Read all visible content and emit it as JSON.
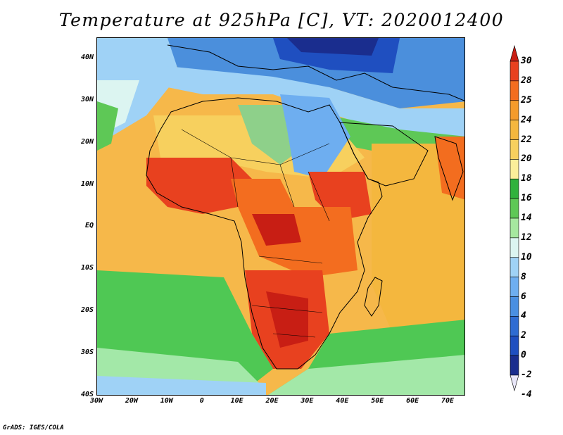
{
  "title": "Temperature at 925hPa [C], VT: 2020012400",
  "credit": "GrADS: IGES/COLA",
  "map": {
    "lat_labels": [
      "40N",
      "30N",
      "20N",
      "10N",
      "EQ",
      "10S",
      "20S",
      "30S",
      "40S"
    ],
    "lon_labels": [
      "30W",
      "20W",
      "10W",
      "0",
      "10E",
      "20E",
      "30E",
      "40E",
      "50E",
      "60E",
      "70E"
    ],
    "lat_range": [
      -40,
      45
    ],
    "lon_range": [
      -30,
      75
    ],
    "colors": {
      "ocean_tropical": "#f6b84a",
      "ocean_subtropical": "#f8d070",
      "ocean_south": "#4fc854",
      "ocean_far_south": "#a3e8a8",
      "europe": "#4b8fdc",
      "sahara": "#8ed08a",
      "sahel_hot": "#d8401e",
      "interior_hot": "#e86020",
      "north_coast": "#9cd2f4",
      "coastline": "#000000"
    }
  },
  "colorbar": {
    "levels": [
      "30",
      "28",
      "25",
      "24",
      "22",
      "20",
      "18",
      "16",
      "14",
      "12",
      "10",
      "8",
      "6",
      "4",
      "2",
      "0",
      "-2",
      "-4"
    ],
    "colors_top_to_bottom": [
      "#c81e14",
      "#e8411f",
      "#f36d1f",
      "#f49b2c",
      "#f4b73e",
      "#f7d05e",
      "#fbee9a",
      "#30b23d",
      "#5ec856",
      "#a6e89f",
      "#dcf5f1",
      "#9fd2f6",
      "#6eaef0",
      "#4a8fe1",
      "#2f6cd2",
      "#1f4fc0",
      "#1a2d8e",
      "#e8e6f8"
    ]
  }
}
